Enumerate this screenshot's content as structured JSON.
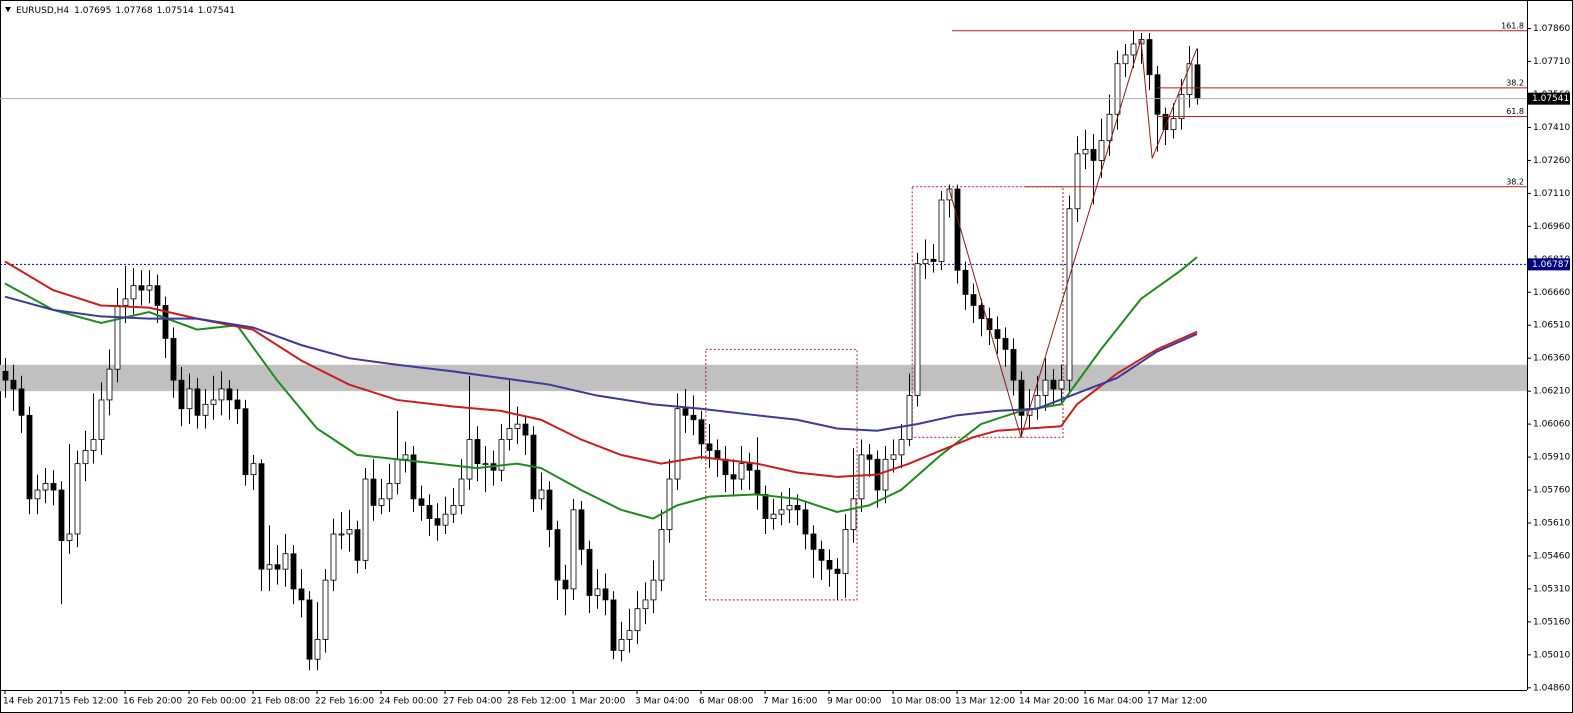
{
  "chart_data": {
    "type": "candlestick",
    "symbol": "EURUSD,H4",
    "up_color": "#ffffff",
    "down_color": "#000000",
    "open": [
      1.063,
      1.0626,
      1.0622,
      1.061,
      1.0572,
      1.0576,
      1.0579,
      1.0576,
      1.0553,
      1.0556,
      1.0588,
      1.0594,
      1.0599,
      1.0617,
      1.0631,
      1.066,
      1.0663,
      1.0669,
      1.0667,
      1.0669,
      1.066,
      1.0645,
      1.0626,
      1.0613,
      1.0622,
      1.061,
      1.0615,
      1.0617,
      1.0622,
      1.0617,
      1.0613,
      1.0583,
      1.0588,
      1.054,
      1.0542,
      1.054,
      1.0547,
      1.0531,
      1.0526,
      1.0499,
      1.0508,
      1.0535,
      1.0556,
      1.0556,
      1.0558,
      1.0544,
      1.0581,
      1.0569,
      1.0572,
      1.0579,
      1.059,
      1.0592,
      1.0572,
      1.0569,
      1.0563,
      1.056,
      1.0565,
      1.0569,
      1.0581,
      1.0599,
      1.0588,
      1.0588,
      1.0585,
      1.0599,
      1.0604,
      1.0606,
      1.0601,
      1.0572,
      1.0576,
      1.0558,
      1.0535,
      1.0531,
      1.0567,
      1.0549,
      1.0528,
      1.0531,
      1.0526,
      1.0503,
      1.0508,
      1.0512,
      1.0522,
      1.0526,
      1.0535,
      1.0558,
      1.0581,
      1.0613,
      1.061,
      1.0608,
      1.0597,
      1.0594,
      1.059,
      1.0583,
      1.0581,
      1.0588,
      1.0585,
      1.0574,
      1.0563,
      1.0565,
      1.0567,
      1.0569,
      1.0567,
      1.0556,
      1.0549,
      1.0544,
      1.054,
      1.0538,
      1.0558,
      1.0572,
      1.0592,
      1.059,
      1.0576,
      1.059,
      1.0592,
      1.0599,
      1.0619,
      1.0679,
      1.0681,
      1.068,
      1.0708,
      1.0713,
      1.0676,
      1.0665,
      1.066,
      1.0654,
      1.0649,
      1.0645,
      1.064,
      1.0626,
      1.061,
      1.0613,
      1.0619,
      1.0626,
      1.0622,
      1.0626,
      1.0704,
      1.0729,
      1.0731,
      1.0726,
      1.0735,
      1.0747,
      1.077,
      1.0774,
      1.0779,
      1.0781,
      1.0765,
      1.0747,
      1.074,
      1.0745,
      1.0756,
      1.07695
    ],
    "high": [
      1.0636,
      1.0633,
      1.0628,
      1.0614,
      1.0583,
      1.0586,
      1.0585,
      1.058,
      1.0597,
      1.0594,
      1.0603,
      1.062,
      1.0625,
      1.064,
      1.0668,
      1.0678,
      1.0677,
      1.0676,
      1.0676,
      1.0674,
      1.0664,
      1.065,
      1.0632,
      1.0629,
      1.0627,
      1.0622,
      1.0628,
      1.063,
      1.0626,
      1.0622,
      1.0617,
      1.0592,
      1.059,
      1.056,
      1.0551,
      1.0556,
      1.0551,
      1.054,
      1.053,
      1.0525,
      1.054,
      1.0563,
      1.0566,
      1.0567,
      1.0562,
      1.0586,
      1.059,
      1.0581,
      1.0588,
      1.0612,
      1.0598,
      1.0596,
      1.0578,
      1.0574,
      1.057,
      1.0573,
      1.0577,
      1.059,
      1.0628,
      1.0605,
      1.0596,
      1.0594,
      1.0606,
      1.0626,
      1.0614,
      1.061,
      1.0605,
      1.0584,
      1.058,
      1.0562,
      1.0542,
      1.0572,
      1.0571,
      1.0553,
      1.054,
      1.0538,
      1.053,
      1.0516,
      1.0522,
      1.053,
      1.0534,
      1.0544,
      1.0567,
      1.059,
      1.062,
      1.0622,
      1.0619,
      1.0612,
      1.0606,
      1.0599,
      1.0596,
      1.059,
      1.0596,
      1.0593,
      1.06,
      1.0578,
      1.0572,
      1.0575,
      1.0577,
      1.0574,
      1.0571,
      1.056,
      1.0553,
      1.0549,
      1.0545,
      1.0565,
      1.0595,
      1.0599,
      1.0597,
      1.0594,
      1.0596,
      1.0599,
      1.0606,
      1.0629,
      1.0684,
      1.069,
      1.0688,
      1.0712,
      1.0715,
      1.0715,
      1.068,
      1.067,
      1.0663,
      1.0659,
      1.0655,
      1.065,
      1.0645,
      1.063,
      1.0622,
      1.0628,
      1.0636,
      1.0631,
      1.0633,
      1.071,
      1.0737,
      1.074,
      1.0738,
      1.0745,
      1.0756,
      1.0776,
      1.0779,
      1.0785,
      1.0784,
      1.0784,
      1.0769,
      1.075,
      1.0752,
      1.0763,
      1.0778,
      1.07768
    ],
    "low": [
      1.0618,
      1.0612,
      1.0602,
      1.0565,
      1.0565,
      1.057,
      1.0569,
      1.0524,
      1.0547,
      1.055,
      1.058,
      1.0588,
      1.0592,
      1.061,
      1.0625,
      1.0652,
      1.0656,
      1.066,
      1.0661,
      1.0652,
      1.0636,
      1.0618,
      1.0605,
      1.0606,
      1.0604,
      1.0604,
      1.0608,
      1.061,
      1.0608,
      1.0606,
      1.0578,
      1.0576,
      1.053,
      1.053,
      1.0533,
      1.0532,
      1.0524,
      1.0518,
      1.0494,
      1.0494,
      1.0502,
      1.053,
      1.0549,
      1.0548,
      1.0538,
      1.054,
      1.0562,
      1.0565,
      1.0566,
      1.0574,
      1.0584,
      1.0566,
      1.0562,
      1.0555,
      1.0553,
      1.0556,
      1.0561,
      1.0565,
      1.0576,
      1.058,
      1.0575,
      1.0578,
      1.058,
      1.0594,
      1.0597,
      1.0592,
      1.0566,
      1.0567,
      1.055,
      1.0526,
      1.0519,
      1.0526,
      1.0542,
      1.052,
      1.0522,
      1.0519,
      1.0499,
      1.0498,
      1.0502,
      1.0506,
      1.0515,
      1.052,
      1.053,
      1.0552,
      1.0576,
      1.0602,
      1.0601,
      1.059,
      1.0586,
      1.0582,
      1.0575,
      1.0573,
      1.0576,
      1.0576,
      1.0567,
      1.0556,
      1.0558,
      1.056,
      1.0561,
      1.056,
      1.0549,
      1.0536,
      1.0535,
      1.0532,
      1.0526,
      1.0527,
      1.0552,
      1.0566,
      1.0582,
      1.0568,
      1.057,
      1.0584,
      1.0586,
      1.0596,
      1.0614,
      1.0672,
      1.0675,
      1.0676,
      1.07,
      1.067,
      1.0658,
      1.0652,
      1.0646,
      1.0642,
      1.0638,
      1.0632,
      1.0619,
      1.06,
      1.0604,
      1.0608,
      1.0612,
      1.0614,
      1.0615,
      1.062,
      1.0698,
      1.0722,
      1.0706,
      1.0718,
      1.0728,
      1.074,
      1.0764,
      1.0768,
      1.077,
      1.0758,
      1.073,
      1.0733,
      1.0736,
      1.074,
      1.075,
      1.07514
    ],
    "close": [
      1.0626,
      1.0622,
      1.061,
      1.0572,
      1.0576,
      1.0579,
      1.0576,
      1.0553,
      1.0556,
      1.0588,
      1.0594,
      1.0599,
      1.0617,
      1.0631,
      1.066,
      1.0663,
      1.0669,
      1.0667,
      1.0669,
      1.066,
      1.0645,
      1.0626,
      1.0613,
      1.0622,
      1.061,
      1.0615,
      1.0617,
      1.0622,
      1.0617,
      1.0613,
      1.0583,
      1.0588,
      1.054,
      1.0542,
      1.054,
      1.0547,
      1.0531,
      1.0526,
      1.0499,
      1.0508,
      1.0535,
      1.0556,
      1.0556,
      1.0558,
      1.0544,
      1.0581,
      1.0569,
      1.0572,
      1.0579,
      1.059,
      1.0592,
      1.0572,
      1.0569,
      1.0563,
      1.056,
      1.0565,
      1.0569,
      1.0581,
      1.0599,
      1.0588,
      1.0588,
      1.0585,
      1.0599,
      1.0604,
      1.0606,
      1.0601,
      1.0572,
      1.0576,
      1.0558,
      1.0535,
      1.0531,
      1.0567,
      1.0549,
      1.0528,
      1.0531,
      1.0526,
      1.0503,
      1.0508,
      1.0512,
      1.0522,
      1.0526,
      1.0535,
      1.0558,
      1.0581,
      1.0613,
      1.061,
      1.0608,
      1.0597,
      1.0594,
      1.059,
      1.0583,
      1.0581,
      1.0588,
      1.0585,
      1.0574,
      1.0563,
      1.0565,
      1.0567,
      1.0569,
      1.0567,
      1.0556,
      1.0549,
      1.0544,
      1.054,
      1.0538,
      1.0558,
      1.0572,
      1.0592,
      1.059,
      1.0576,
      1.059,
      1.0592,
      1.0599,
      1.0619,
      1.0679,
      1.0681,
      1.068,
      1.0708,
      1.0713,
      1.0676,
      1.0665,
      1.066,
      1.0654,
      1.0649,
      1.0645,
      1.064,
      1.0626,
      1.061,
      1.0613,
      1.0619,
      1.0626,
      1.0622,
      1.0626,
      1.0704,
      1.0729,
      1.0731,
      1.0726,
      1.0735,
      1.0747,
      1.077,
      1.0774,
      1.0779,
      1.0781,
      1.0765,
      1.0747,
      1.074,
      1.0745,
      1.0756,
      1.077,
      1.07541
    ],
    "series": [
      {
        "color": "#1e8a1e",
        "x": [
          0,
          6,
          12,
          18,
          24,
          29,
          34,
          39,
          44,
          49,
          54,
          59,
          64,
          67,
          72,
          77,
          81,
          84,
          88,
          94,
          99,
          104,
          108,
          112,
          117,
          122,
          127,
          132,
          137,
          142,
          147,
          149
        ],
        "values": [
          1.067,
          1.0658,
          1.0652,
          1.0657,
          1.0649,
          1.0651,
          1.0626,
          1.0604,
          1.0592,
          1.059,
          1.0588,
          1.0586,
          1.0588,
          1.0586,
          1.0576,
          1.0567,
          1.0563,
          1.0569,
          1.0573,
          1.0574,
          1.0572,
          1.0566,
          1.0569,
          1.0576,
          1.0592,
          1.0606,
          1.0612,
          1.0615,
          1.064,
          1.0663,
          1.0676,
          1.0682
        ]
      },
      {
        "color": "#c81e1e",
        "x": [
          0,
          6,
          12,
          18,
          24,
          31,
          37,
          43,
          49,
          56,
          62,
          67,
          72,
          77,
          82,
          87,
          94,
          99,
          104,
          109,
          113,
          117,
          121,
          124,
          132,
          134,
          139,
          144,
          149
        ],
        "values": [
          1.068,
          1.0667,
          1.066,
          1.0659,
          1.0654,
          1.0649,
          1.0635,
          1.0624,
          1.0617,
          1.0614,
          1.0612,
          1.0608,
          1.0599,
          1.0592,
          1.0588,
          1.0591,
          1.0588,
          1.0584,
          1.0582,
          1.0583,
          1.0588,
          1.0594,
          1.06,
          1.0603,
          1.0605,
          1.0615,
          1.0629,
          1.064,
          1.0648
        ]
      },
      {
        "color": "#3a3a9a",
        "x": [
          0,
          6,
          12,
          18,
          24,
          31,
          37,
          43,
          49,
          56,
          62,
          68,
          74,
          81,
          87,
          94,
          99,
          104,
          109,
          114,
          119,
          124,
          129,
          134,
          139,
          144,
          149
        ],
        "values": [
          1.0664,
          1.0658,
          1.0655,
          1.0654,
          1.0654,
          1.065,
          1.0642,
          1.0636,
          1.0633,
          1.063,
          1.0627,
          1.0624,
          1.0619,
          1.0615,
          1.0613,
          1.061,
          1.0608,
          1.0604,
          1.0603,
          1.0606,
          1.061,
          1.0612,
          1.0613,
          1.062,
          1.0627,
          1.0639,
          1.0647
        ]
      }
    ],
    "ylim": [
      1.0485,
      1.0799
    ],
    "yticks": [
      {
        "value": 1.0786,
        "label": "1.07860"
      },
      {
        "value": 1.0771,
        "label": "1.07710"
      },
      {
        "value": 1.0756,
        "label": "1.07560"
      },
      {
        "value": 1.0741,
        "label": "1.07410"
      },
      {
        "value": 1.0726,
        "label": "1.07260"
      },
      {
        "value": 1.0711,
        "label": "1.07110"
      },
      {
        "value": 1.0696,
        "label": "1.06960"
      },
      {
        "value": 1.0681,
        "label": "1.06810"
      },
      {
        "value": 1.0666,
        "label": "1.06660"
      },
      {
        "value": 1.0651,
        "label": "1.06510"
      },
      {
        "value": 1.0636,
        "label": "1.06360"
      },
      {
        "value": 1.0621,
        "label": "1.06210"
      },
      {
        "value": 1.0606,
        "label": "1.06060"
      },
      {
        "value": 1.0591,
        "label": "1.05910"
      },
      {
        "value": 1.0576,
        "label": "1.05760"
      },
      {
        "value": 1.0561,
        "label": "1.05610"
      },
      {
        "value": 1.0546,
        "label": "1.05460"
      },
      {
        "value": 1.0531,
        "label": "1.05310"
      },
      {
        "value": 1.0516,
        "label": "1.05160"
      },
      {
        "value": 1.0501,
        "label": "1.05010"
      },
      {
        "value": 1.0486,
        "label": "1.04860"
      }
    ],
    "xticks": [
      {
        "value": 0,
        "label": "14 Feb 2017"
      },
      {
        "value": 7,
        "label": "15 Feb 12:00"
      },
      {
        "value": 15,
        "label": "16 Feb 20:00"
      },
      {
        "value": 23,
        "label": "20 Feb 00:00"
      },
      {
        "value": 31,
        "label": "21 Feb 08:00"
      },
      {
        "value": 39,
        "label": "22 Feb 16:00"
      },
      {
        "value": 47,
        "label": "24 Feb 00:00"
      },
      {
        "value": 55,
        "label": "27 Feb 04:00"
      },
      {
        "value": 63,
        "label": "28 Feb 12:00"
      },
      {
        "value": 71,
        "label": "1 Mar 20:00"
      },
      {
        "value": 79,
        "label": "3 Mar 04:00"
      },
      {
        "value": 87,
        "label": "6 Mar 08:00"
      },
      {
        "value": 95,
        "label": "7 Mar 16:00"
      },
      {
        "value": 103,
        "label": "9 Mar 00:00"
      },
      {
        "value": 111,
        "label": "10 Mar 08:00"
      },
      {
        "value": 119,
        "label": "13 Mar 12:00"
      },
      {
        "value": 127,
        "label": "14 Mar 20:00"
      },
      {
        "value": 135,
        "label": "16 Mar 04:00"
      },
      {
        "value": 143,
        "label": "17 Mar 12:00"
      }
    ],
    "level": {
      "value": 1.06787,
      "color": "#000080"
    },
    "zone": [
      1.0621,
      1.0633
    ],
    "zone_color": "#c0c0c0",
    "box_color": "#b22222",
    "boxes": [
      {
        "x": [
          87.6,
          106.5
        ],
        "y": [
          1.0526,
          1.064
        ]
      },
      {
        "x": [
          113.4,
          132.25
        ],
        "y": [
          1.06,
          1.0714
        ]
      }
    ],
    "fib_color": "#b22222",
    "fibs": [
      {
        "label": "161.8",
        "value": 1.0785,
        "from": 118.4
      },
      {
        "label": "38.2",
        "value": 1.0759,
        "from": 144
      },
      {
        "label": "61.8",
        "value": 1.0746,
        "from": 144
      },
      {
        "label": "38.2",
        "value": 1.0714,
        "from": 127.5
      }
    ],
    "trendline": {
      "color": "#8b1a1a",
      "x": [
        118,
        127,
        142,
        143.4,
        149
      ],
      "values": [
        1.0713,
        1.06,
        1.0781,
        1.0727,
        1.0777
      ]
    }
  }
}
